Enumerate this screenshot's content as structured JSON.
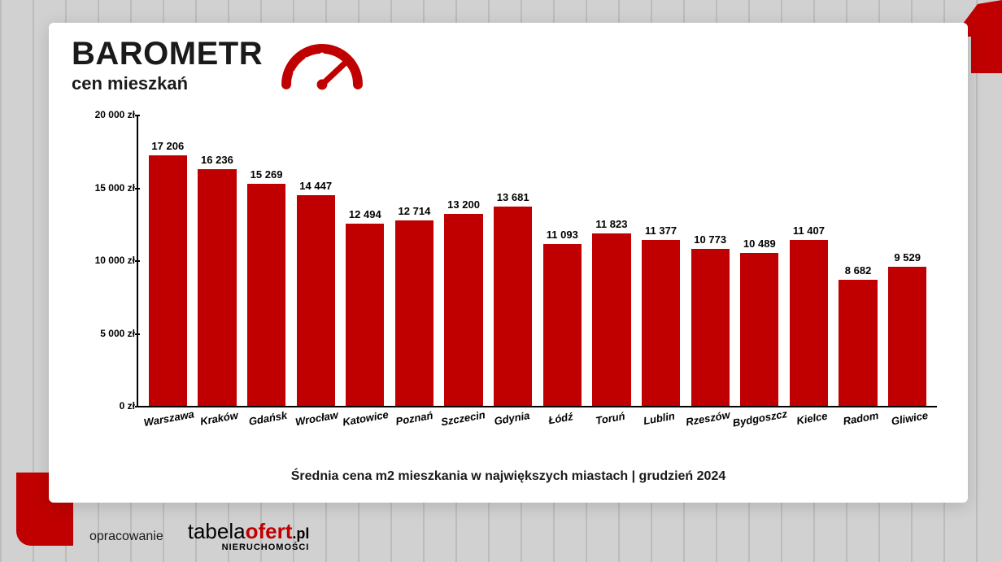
{
  "header": {
    "title": "BAROMETR",
    "subtitle": "cen mieszkań"
  },
  "chart": {
    "type": "bar",
    "ylim": [
      0,
      20000
    ],
    "ytick_step": 5000,
    "currency_suffix": " zł",
    "bar_color": "#c00000",
    "axis_color": "#000000",
    "background_color": "#ffffff",
    "value_fontsize": 13,
    "label_fontsize": 13,
    "yticks": [
      {
        "value": 0,
        "label": "0 zł"
      },
      {
        "value": 5000,
        "label": "5 000 zł"
      },
      {
        "value": 10000,
        "label": "10 000 zł"
      },
      {
        "value": 15000,
        "label": "15 000 zł"
      },
      {
        "value": 20000,
        "label": "20 000 zł"
      }
    ],
    "categories": [
      "Warszawa",
      "Kraków",
      "Gdańsk",
      "Wrocław",
      "Katowice",
      "Poznań",
      "Szczecin",
      "Gdynia",
      "Łódź",
      "Toruń",
      "Lublin",
      "Rzeszów",
      "Bydgoszcz",
      "Kielce",
      "Radom",
      "Gliwice"
    ],
    "values": [
      17206,
      16236,
      15269,
      14447,
      12494,
      12714,
      13200,
      13681,
      11093,
      11823,
      11377,
      10773,
      10489,
      11407,
      8682,
      9529
    ],
    "value_labels": [
      "17 206",
      "16 236",
      "15 269",
      "14 447",
      "12 494",
      "12 714",
      "13 200",
      "13 681",
      "11 093",
      "11 823",
      "11 377",
      "10 773",
      "10 489",
      "11 407",
      "8 682",
      "9 529"
    ]
  },
  "caption": "Średnia cena m2 mieszkania w największych miastach | grudzień 2024",
  "footer": {
    "label": "opracowanie",
    "logo_part1": "tabela",
    "logo_part2": "ofert",
    "logo_part3": ".pl",
    "logo_sub": "NIERUCHOMOŚCI"
  },
  "colors": {
    "accent": "#c00000",
    "text": "#1a1a1a",
    "card_bg": "#ffffff"
  }
}
